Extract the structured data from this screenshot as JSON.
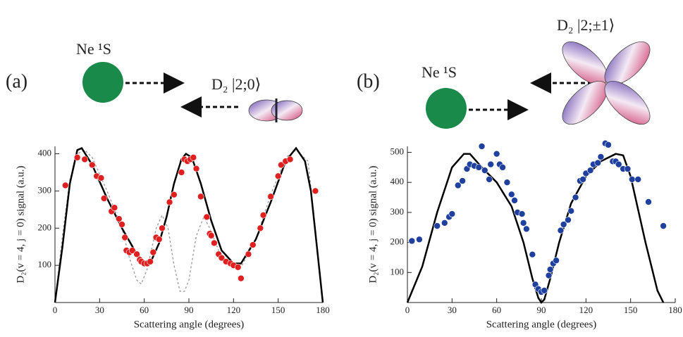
{
  "chart_data": [
    {
      "type": "scatter",
      "panel_label": "(a)",
      "atom_label": "Ne ¹S",
      "molecule_label": "D₂ |2;0⟩",
      "xlabel": "Scattering angle (degrees)",
      "ylabel": "D₂(v = 4, j = 0) signal (a.u.)",
      "xlim": [
        0,
        180
      ],
      "ylim": [
        0,
        420
      ],
      "xticks": [
        0,
        30,
        60,
        90,
        120,
        150,
        180
      ],
      "yticks": [
        100,
        200,
        300,
        400
      ],
      "series": [
        {
          "type": "line",
          "color": "#999999",
          "dash": true,
          "x": [
            0,
            5,
            10,
            15,
            20,
            25,
            35,
            45,
            50,
            55,
            58,
            62,
            68,
            72,
            76,
            80,
            84,
            87,
            90,
            95,
            100,
            104,
            110,
            115,
            125,
            135,
            145,
            155,
            162,
            170,
            175,
            180
          ],
          "values": [
            0,
            180,
            330,
            400,
            410,
            390,
            300,
            200,
            120,
            60,
            50,
            90,
            200,
            235,
            200,
            100,
            30,
            30,
            60,
            180,
            230,
            200,
            140,
            105,
            95,
            170,
            290,
            390,
            410,
            380,
            200,
            0
          ]
        },
        {
          "type": "line",
          "color": "#000000",
          "dash": false,
          "x": [
            0,
            5,
            10,
            15,
            18,
            25,
            35,
            45,
            55,
            60,
            65,
            70,
            75,
            80,
            85,
            88,
            92,
            98,
            105,
            112,
            120,
            125,
            135,
            145,
            155,
            162,
            168,
            172,
            176,
            180
          ],
          "values": [
            0,
            150,
            320,
            410,
            415,
            370,
            280,
            200,
            130,
            110,
            115,
            160,
            230,
            320,
            385,
            400,
            390,
            320,
            220,
            140,
            105,
            105,
            170,
            270,
            380,
            415,
            380,
            300,
            150,
            0
          ]
        },
        {
          "type": "scatter",
          "color": "#e02020",
          "x": [
            7,
            15,
            20,
            25,
            28,
            31,
            33,
            38,
            40,
            43,
            45,
            47,
            48,
            50,
            52,
            55,
            57,
            58,
            60,
            62,
            64,
            66,
            68,
            70,
            72,
            77,
            80,
            85,
            87,
            89,
            91,
            93,
            95,
            98,
            102,
            104,
            105,
            107,
            110,
            112,
            115,
            118,
            120,
            123,
            125,
            130,
            133,
            138,
            140,
            145,
            150,
            152,
            155,
            158,
            175
          ],
          "values": [
            315,
            390,
            385,
            370,
            340,
            335,
            280,
            245,
            255,
            225,
            210,
            175,
            140,
            135,
            140,
            130,
            115,
            110,
            105,
            105,
            110,
            135,
            175,
            170,
            200,
            270,
            290,
            350,
            385,
            380,
            385,
            390,
            360,
            285,
            230,
            185,
            180,
            160,
            130,
            120,
            110,
            105,
            100,
            95,
            65,
            130,
            155,
            200,
            235,
            285,
            340,
            370,
            380,
            385,
            300
          ]
        }
      ]
    },
    {
      "type": "scatter",
      "panel_label": "(b)",
      "atom_label": "Ne ¹S",
      "molecule_label": "D₂ |2;±1⟩",
      "xlabel": "Scattering angle (degrees)",
      "ylabel": "D₂(v = 4, j = 0) signal (a.u.)",
      "xlim": [
        0,
        180
      ],
      "ylim": [
        0,
        520
      ],
      "xticks": [
        0,
        30,
        60,
        90,
        120,
        150,
        180
      ],
      "yticks": [
        100,
        200,
        300,
        400,
        500
      ],
      "series": [
        {
          "type": "line",
          "color": "#000000",
          "dash": false,
          "x": [
            0,
            10,
            20,
            30,
            38,
            42,
            50,
            60,
            70,
            78,
            84,
            88,
            90,
            92,
            96,
            102,
            110,
            120,
            130,
            140,
            145,
            150,
            160,
            168,
            172
          ],
          "values": [
            0,
            120,
            300,
            450,
            495,
            495,
            450,
            400,
            320,
            200,
            80,
            15,
            0,
            10,
            80,
            200,
            330,
            420,
            470,
            495,
            490,
            420,
            200,
            40,
            0
          ]
        },
        {
          "type": "scatter",
          "color": "#2040a0",
          "x": [
            3,
            8,
            20,
            25,
            28,
            30,
            34,
            37,
            40,
            42,
            45,
            48,
            50,
            52,
            55,
            56,
            60,
            62,
            64,
            67,
            70,
            72,
            74,
            77,
            78,
            80,
            84,
            86,
            88,
            90,
            92,
            95,
            96,
            98,
            100,
            103,
            105,
            108,
            110,
            113,
            116,
            118,
            120,
            123,
            125,
            128,
            130,
            133,
            135,
            138,
            140,
            142,
            145,
            148,
            151,
            155,
            162,
            172
          ],
          "values": [
            205,
            210,
            255,
            265,
            285,
            295,
            390,
            405,
            445,
            460,
            455,
            450,
            520,
            440,
            410,
            460,
            495,
            460,
            450,
            400,
            360,
            340,
            300,
            295,
            265,
            245,
            160,
            60,
            45,
            35,
            40,
            90,
            110,
            130,
            140,
            240,
            260,
            275,
            305,
            350,
            405,
            410,
            430,
            440,
            460,
            465,
            485,
            530,
            525,
            470,
            470,
            460,
            445,
            445,
            410,
            410,
            335,
            255
          ]
        }
      ]
    }
  ]
}
